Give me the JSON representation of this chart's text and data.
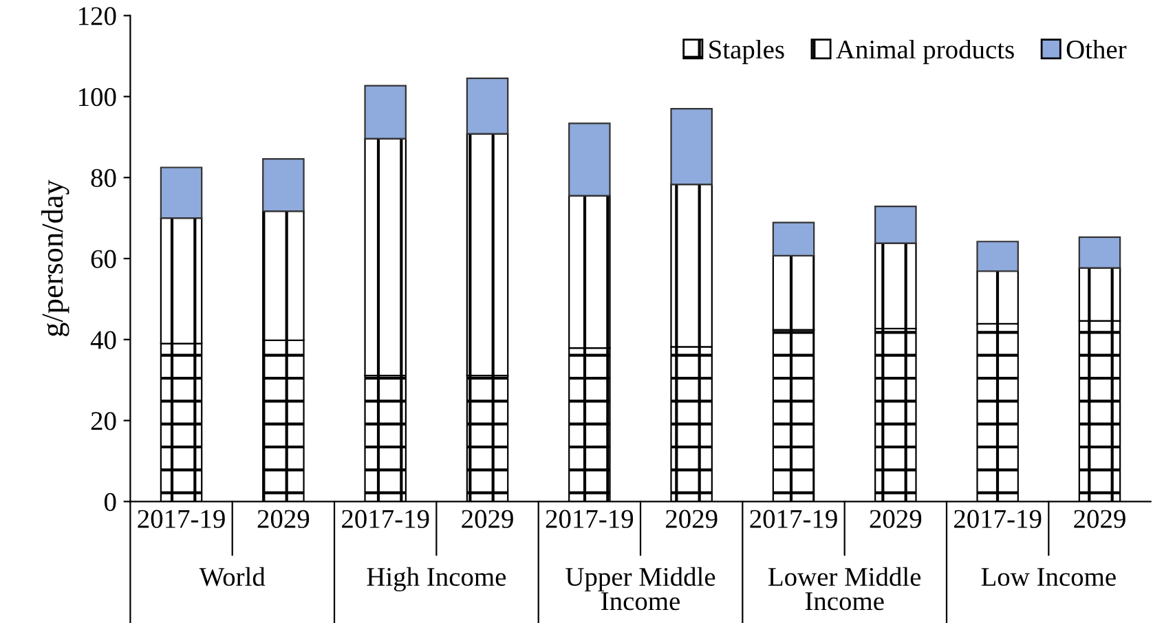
{
  "chart_data": {
    "type": "bar",
    "stacked": true,
    "ylabel": "g/person/day",
    "categories": [
      "2017-19",
      "2029",
      "2017-19",
      "2029",
      "2017-19",
      "2029",
      "2017-19",
      "2029",
      "2017-19",
      "2029"
    ],
    "annotations": [
      "World",
      "High Income",
      "Upper Middle Income",
      "Lower Middle Income",
      "Low Income"
    ],
    "series": [
      {
        "name": "Staples",
        "color": "#000000",
        "values": [
          39,
          39.8,
          31.1,
          31.1,
          37.9,
          38.2,
          42.4,
          42.7,
          43.9,
          44.6
        ]
      },
      {
        "name": "Animal products",
        "color": "#000000",
        "values": [
          31,
          31.9,
          58.5,
          59.7,
          37.6,
          40.1,
          18.3,
          21.1,
          13,
          13.1
        ]
      },
      {
        "name": "Other",
        "color": "#8faadc",
        "values": [
          12.5,
          12.9,
          13.1,
          13.7,
          17.9,
          18.7,
          8.2,
          9.1,
          7.3,
          7.6
        ]
      }
    ],
    "ylim": [
      0,
      120
    ],
    "yticks": [
      0,
      20,
      40,
      60,
      80,
      100,
      120
    ],
    "grid": false,
    "legend": "top right"
  }
}
